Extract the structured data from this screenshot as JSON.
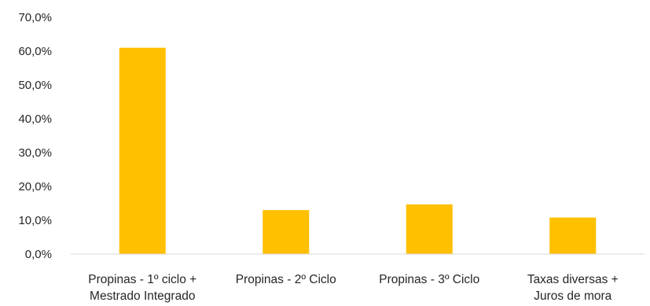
{
  "chart_data": {
    "type": "bar",
    "title": "",
    "xlabel": "",
    "ylabel": "",
    "categories": [
      [
        "Propinas - 1º ciclo +",
        "Mestrado Integrado"
      ],
      [
        "Propinas - 2º Ciclo"
      ],
      [
        "Propinas - 3º Ciclo"
      ],
      [
        "Taxas diversas +",
        "Juros de mora"
      ]
    ],
    "values": [
      61.0,
      13.0,
      14.7,
      10.8
    ],
    "ylim": [
      0,
      70
    ],
    "yticks": [
      "0,0%",
      "10,0%",
      "20,0%",
      "30,0%",
      "40,0%",
      "50,0%",
      "60,0%",
      "70,0%"
    ],
    "ytick_values": [
      0,
      10,
      20,
      30,
      40,
      50,
      60,
      70
    ],
    "grid": false,
    "legend": "none",
    "bar_color": "#FFC000",
    "axis_color": "#D9D9D9"
  }
}
